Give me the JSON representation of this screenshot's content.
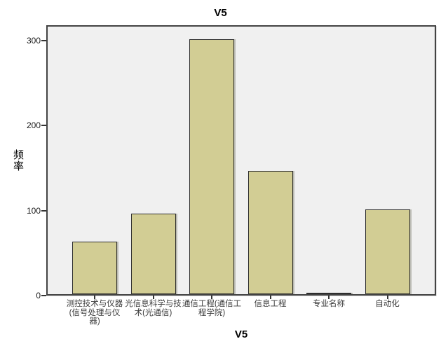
{
  "figure": {
    "title": "V5",
    "footer_xlabel": "V5",
    "y_axis_label": "频率"
  },
  "chart_data": {
    "type": "bar",
    "title": "V5",
    "xlabel": "V5",
    "ylabel": "频率",
    "categories": [
      "测控技术与仪器\n(信号处理与仪\n器)",
      "光信息科学与技\n术(光通信)",
      "通信工程(通信工\n程学院)",
      "信息工程",
      "专业名称",
      "自动化"
    ],
    "values": [
      62,
      95,
      300,
      145,
      1,
      100
    ],
    "yticks": [
      0,
      100,
      200,
      300
    ],
    "ylim": [
      0,
      318
    ],
    "grid": false,
    "legend": false,
    "bar_fill": "#d2cd94",
    "bar_border": "#2e2e2e",
    "plot_background": "#f0f0f0",
    "frame_border": "#434343"
  }
}
